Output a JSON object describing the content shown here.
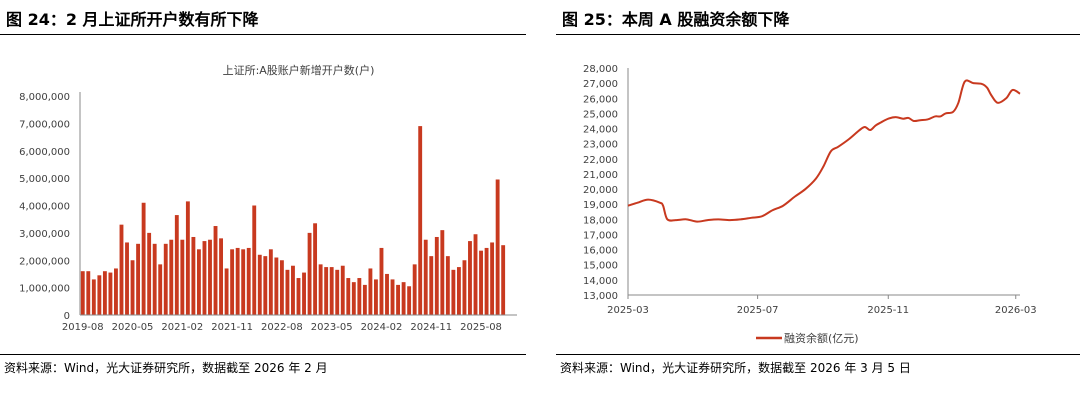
{
  "charts": [
    {
      "panel_title": "图 24：2 月上证所开户数有所下降",
      "source": "资料来源：Wind，光大证券研究所，数据截至 2026 年 2 月",
      "chart_data": {
        "type": "bar",
        "title": "上证所:A股账户新增开户数(户)",
        "xlabel": "",
        "ylabel": "",
        "ylim": [
          0,
          8000000
        ],
        "yticks": [
          0,
          1000000,
          2000000,
          3000000,
          4000000,
          5000000,
          6000000,
          7000000,
          8000000
        ],
        "ytick_labels": [
          "0",
          "1,000,000",
          "2,000,000",
          "3,000,000",
          "4,000,000",
          "5,000,000",
          "6,000,000",
          "7,000,000",
          "8,000,000"
        ],
        "xtick_labels": [
          "2019-08",
          "2020-05",
          "2021-02",
          "2021-11",
          "2022-08",
          "2023-05",
          "2024-02",
          "2024-11",
          "2025-08"
        ],
        "xtick_indices": [
          0,
          9,
          18,
          27,
          36,
          45,
          54,
          63,
          72
        ],
        "grid": false,
        "legend": "none",
        "color": "#C8391F",
        "categories": [
          "2019-08",
          "2019-09",
          "2019-10",
          "2019-11",
          "2019-12",
          "2020-01",
          "2020-02",
          "2020-03",
          "2020-04",
          "2020-05",
          "2020-06",
          "2020-07",
          "2020-08",
          "2020-09",
          "2020-10",
          "2020-11",
          "2020-12",
          "2021-01",
          "2021-02",
          "2021-03",
          "2021-04",
          "2021-05",
          "2021-06",
          "2021-07",
          "2021-08",
          "2021-09",
          "2021-10",
          "2021-11",
          "2021-12",
          "2022-01",
          "2022-02",
          "2022-03",
          "2022-04",
          "2022-05",
          "2022-06",
          "2022-07",
          "2022-08",
          "2022-09",
          "2022-10",
          "2022-11",
          "2022-12",
          "2023-01",
          "2023-02",
          "2023-03",
          "2023-04",
          "2023-05",
          "2023-06",
          "2023-07",
          "2023-08",
          "2023-09",
          "2023-10",
          "2023-11",
          "2023-12",
          "2024-01",
          "2024-02",
          "2024-03",
          "2024-04",
          "2024-05",
          "2024-06",
          "2024-07",
          "2024-08",
          "2024-09",
          "2024-10",
          "2024-11",
          "2024-12",
          "2025-01",
          "2025-02",
          "2025-03",
          "2025-04",
          "2025-05",
          "2025-06",
          "2025-07",
          "2025-08",
          "2025-09",
          "2025-10",
          "2025-11",
          "2025-12",
          "2026-01",
          "2026-02"
        ],
        "values": [
          1600000,
          1600000,
          1300000,
          1450000,
          1600000,
          1550000,
          1700000,
          3300000,
          2650000,
          2000000,
          2600000,
          4100000,
          3000000,
          2600000,
          1850000,
          2600000,
          2750000,
          3650000,
          2750000,
          4150000,
          2850000,
          2400000,
          2700000,
          2750000,
          3250000,
          2800000,
          1700000,
          2400000,
          2450000,
          2400000,
          2450000,
          4000000,
          2200000,
          2150000,
          2400000,
          2100000,
          2000000,
          1650000,
          1800000,
          1350000,
          1550000,
          3000000,
          3350000,
          1850000,
          1750000,
          1750000,
          1650000,
          1800000,
          1350000,
          1200000,
          1350000,
          1100000,
          1700000,
          1300000,
          2450000,
          1500000,
          1300000,
          1100000,
          1200000,
          1050000,
          1850000,
          6900000,
          2750000,
          2150000,
          2850000,
          3100000,
          2150000,
          1650000,
          1750000,
          2000000,
          2700000,
          2950000,
          2350000,
          2450000,
          2650000,
          4950000,
          2550000,
          0,
          0
        ]
      }
    },
    {
      "panel_title": "图 25：本周 A 股融资余额下降",
      "source": "资料来源：Wind，光大证券研究所，数据截至 2026 年 3 月 5 日",
      "chart_data": {
        "type": "line",
        "title": "",
        "xlabel": "",
        "ylabel": "",
        "ylim": [
          13000,
          28000
        ],
        "yticks": [
          13000,
          14000,
          15000,
          16000,
          17000,
          18000,
          19000,
          20000,
          21000,
          22000,
          23000,
          24000,
          25000,
          26000,
          27000,
          28000
        ],
        "ytick_labels": [
          "13,000",
          "14,000",
          "15,000",
          "16,000",
          "17,000",
          "18,000",
          "19,000",
          "20,000",
          "21,000",
          "22,000",
          "23,000",
          "24,000",
          "25,000",
          "26,000",
          "27,000",
          "28,000"
        ],
        "xtick_labels": [
          "2025-03",
          "2025-07",
          "2025-11",
          "2026-03"
        ],
        "grid": false,
        "legend": "bottom-center",
        "series": [
          {
            "name": "融资余额(亿元)",
            "color": "#C8391F",
            "x": [
              "2025-03-01",
              "2025-03-10",
              "2025-03-20",
              "2025-03-31",
              "2025-04-03",
              "2025-04-07",
              "2025-04-15",
              "2025-04-25",
              "2025-05-05",
              "2025-05-15",
              "2025-05-25",
              "2025-06-05",
              "2025-06-15",
              "2025-06-25",
              "2025-07-05",
              "2025-07-15",
              "2025-07-25",
              "2025-08-05",
              "2025-08-15",
              "2025-08-25",
              "2025-09-01",
              "2025-09-08",
              "2025-09-15",
              "2025-09-25",
              "2025-10-05",
              "2025-10-10",
              "2025-10-15",
              "2025-10-20",
              "2025-10-25",
              "2025-11-01",
              "2025-11-08",
              "2025-11-15",
              "2025-11-20",
              "2025-11-25",
              "2025-12-01",
              "2025-12-08",
              "2025-12-15",
              "2025-12-20",
              "2025-12-25",
              "2026-01-01",
              "2026-01-06",
              "2026-01-12",
              "2026-01-20",
              "2026-01-28",
              "2026-02-02",
              "2026-02-06",
              "2026-02-12",
              "2026-02-20",
              "2026-02-26",
              "2026-03-05"
            ],
            "y": [
              18900,
              19100,
              19300,
              19100,
              18900,
              18000,
              17950,
              18000,
              17850,
              17950,
              18000,
              17950,
              18000,
              18100,
              18200,
              18600,
              18900,
              19500,
              20000,
              20700,
              21500,
              22500,
              22800,
              23300,
              23900,
              24100,
              23900,
              24200,
              24400,
              24650,
              24750,
              24650,
              24700,
              24500,
              24550,
              24600,
              24800,
              24800,
              25000,
              25100,
              25700,
              27100,
              27000,
              26950,
              26700,
              26200,
              25700,
              26000,
              26550,
              26300
            ]
          }
        ]
      }
    }
  ]
}
